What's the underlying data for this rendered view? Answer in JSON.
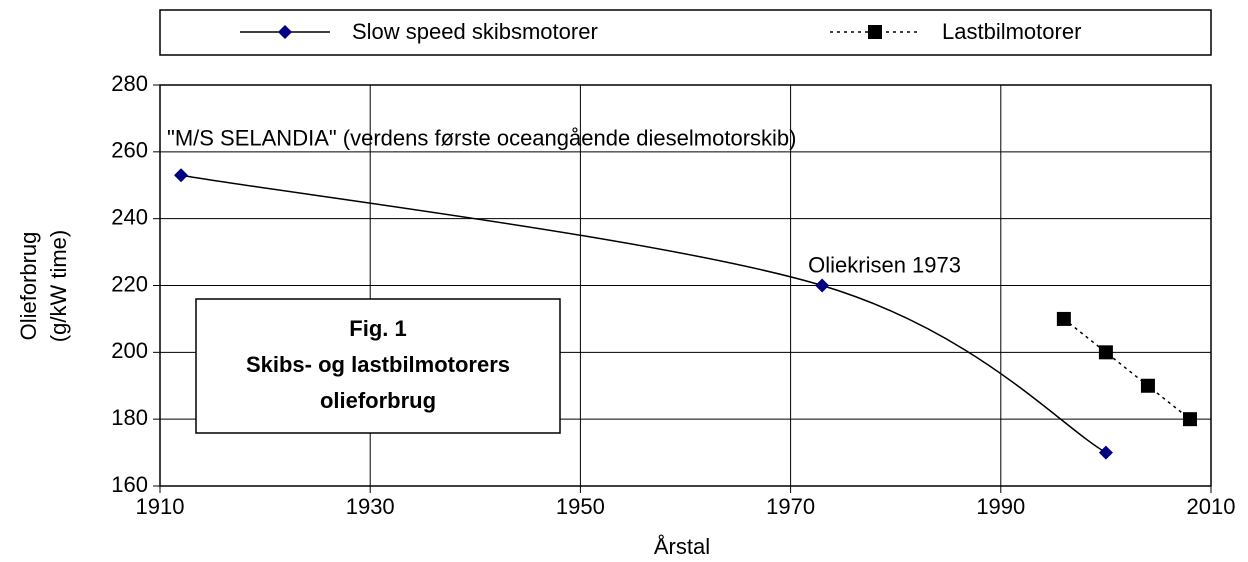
{
  "chart_data": {
    "type": "line",
    "xlabel": "Årstal",
    "ylabel": [
      "Olieforbrug",
      "(g/kW time)"
    ],
    "xlim": [
      1910,
      2010
    ],
    "xticks": [
      1910,
      1930,
      1950,
      1970,
      1990,
      2010
    ],
    "ylim": [
      160,
      280
    ],
    "yticks": [
      160,
      180,
      200,
      220,
      240,
      260,
      280
    ],
    "grid": true,
    "legend": "top",
    "series": [
      {
        "name": "Slow speed skibsmotorer",
        "color": "#000080",
        "line_color": "#000000",
        "marker": "diamond",
        "line_style": "solid",
        "smooth": true,
        "x": [
          1912,
          1973,
          2000
        ],
        "values": [
          253,
          220,
          170
        ]
      },
      {
        "name": "Lastbilmotorer",
        "color": "#000000",
        "line_color": "#000000",
        "marker": "square",
        "line_style": "dotted",
        "smooth": false,
        "x": [
          1996,
          2000,
          2004,
          2008
        ],
        "values": [
          210,
          200,
          190,
          180
        ]
      }
    ],
    "annotations": [
      {
        "text": "\"M/S SELANDIA\" (verdens første oceangående dieselmotorskib)",
        "x": 1912,
        "y": 260
      },
      {
        "text": "Oliekrisen 1973",
        "x": 1973,
        "y": 222
      }
    ],
    "text_box": [
      "Fig. 1",
      "Skibs- og lastbilmotorers",
      "olieforbrug"
    ]
  }
}
